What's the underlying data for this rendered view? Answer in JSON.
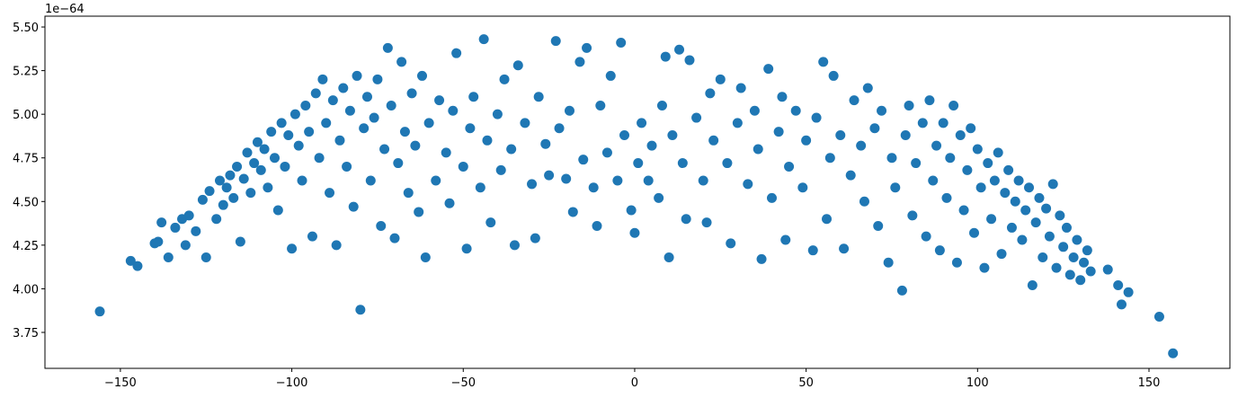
{
  "chart_data": {
    "type": "scatter",
    "color": "#1f77b4",
    "y_offset_label": "1e−64",
    "xlim": [
      -172,
      173.6
    ],
    "ylim": [
      3.544,
      5.562
    ],
    "xticks": [
      {
        "value": -150,
        "label": "−150"
      },
      {
        "value": -100,
        "label": "−100"
      },
      {
        "value": -50,
        "label": "−50"
      },
      0,
      50,
      100,
      150
    ],
    "yticks": [
      {
        "value": 3.75,
        "label": "3.75"
      },
      {
        "value": 4,
        "label": "4.00"
      },
      {
        "value": 4.25,
        "label": "4.25"
      },
      {
        "value": 4.5,
        "label": "4.50"
      },
      {
        "value": 4.75,
        "label": "4.75"
      },
      {
        "value": 5,
        "label": "5.00"
      },
      {
        "value": 5.25,
        "label": "5.25"
      },
      {
        "value": 5.5,
        "label": "5.50"
      }
    ],
    "x": [
      -156,
      -147,
      -145,
      -140,
      -139,
      -138,
      -136,
      -134,
      -132,
      -131,
      -130,
      -128,
      -126,
      -125,
      -124,
      -122,
      -121,
      -120,
      -119,
      -118,
      -117,
      -116,
      -115,
      -114,
      -113,
      -112,
      -111,
      -110,
      -109,
      -108,
      -107,
      -106,
      -105,
      -104,
      -103,
      -102,
      -101,
      -100,
      -99,
      -98,
      -97,
      -96,
      -95,
      -94,
      -93,
      -92,
      -91,
      -90,
      -89,
      -88,
      -87,
      -86,
      -85,
      -84,
      -83,
      -82,
      -81,
      -80,
      -79,
      -78,
      -77,
      -76,
      -75,
      -74,
      -73,
      -72,
      -71,
      -70,
      -69,
      -68,
      -67,
      -66,
      -65,
      -64,
      -63,
      -62,
      -61,
      -60,
      -58,
      -57,
      -55,
      -54,
      -53,
      -52,
      -50,
      -49,
      -48,
      -47,
      -45,
      -44,
      -43,
      -42,
      -40,
      -39,
      -38,
      -36,
      -35,
      -34,
      -32,
      -30,
      -29,
      -28,
      -26,
      -25,
      -23,
      -22,
      -20,
      -19,
      -18,
      -16,
      -15,
      -14,
      -12,
      -11,
      -10,
      -8,
      -7,
      -5,
      -4,
      -3,
      -1,
      0,
      1,
      2,
      4,
      5,
      7,
      8,
      9,
      10,
      11,
      13,
      14,
      15,
      16,
      18,
      20,
      21,
      22,
      23,
      25,
      27,
      28,
      30,
      31,
      33,
      35,
      36,
      37,
      39,
      40,
      42,
      43,
      44,
      45,
      47,
      49,
      50,
      52,
      53,
      55,
      56,
      57,
      58,
      60,
      61,
      63,
      64,
      66,
      67,
      68,
      70,
      71,
      72,
      74,
      75,
      76,
      78,
      79,
      80,
      81,
      82,
      84,
      85,
      86,
      87,
      88,
      89,
      90,
      91,
      92,
      93,
      94,
      95,
      96,
      97,
      98,
      99,
      100,
      101,
      102,
      103,
      104,
      105,
      106,
      107,
      108,
      109,
      110,
      111,
      112,
      113,
      114,
      115,
      116,
      117,
      118,
      119,
      120,
      121,
      122,
      123,
      124,
      125,
      126,
      127,
      128,
      129,
      130,
      131,
      132,
      133,
      138,
      141,
      142,
      144,
      153,
      157
    ],
    "values": [
      3.87,
      4.16,
      4.13,
      4.26,
      4.27,
      4.38,
      4.18,
      4.35,
      4.4,
      4.25,
      4.42,
      4.33,
      4.51,
      4.18,
      4.56,
      4.4,
      4.62,
      4.48,
      4.58,
      4.65,
      4.52,
      4.7,
      4.27,
      4.63,
      4.78,
      4.55,
      4.72,
      4.84,
      4.68,
      4.8,
      4.58,
      4.9,
      4.75,
      4.45,
      4.95,
      4.7,
      4.88,
      4.23,
      5.0,
      4.82,
      4.62,
      5.05,
      4.9,
      4.3,
      5.12,
      4.75,
      5.2,
      4.95,
      4.55,
      5.08,
      4.25,
      4.85,
      5.15,
      4.7,
      5.02,
      4.47,
      5.22,
      3.88,
      4.92,
      5.1,
      4.62,
      4.98,
      5.2,
      4.36,
      4.8,
      5.38,
      5.05,
      4.29,
      4.72,
      5.3,
      4.9,
      4.55,
      5.12,
      4.82,
      4.44,
      5.22,
      4.18,
      4.95,
      4.62,
      5.08,
      4.78,
      4.49,
      5.02,
      5.35,
      4.7,
      4.23,
      4.92,
      5.1,
      4.58,
      5.43,
      4.85,
      4.38,
      5.0,
      4.68,
      5.2,
      4.8,
      4.25,
      5.28,
      4.95,
      4.6,
      4.29,
      5.1,
      4.83,
      4.65,
      5.42,
      4.92,
      4.63,
      5.02,
      4.44,
      5.3,
      4.74,
      5.38,
      4.58,
      4.36,
      5.05,
      4.78,
      5.22,
      4.62,
      5.41,
      4.88,
      4.45,
      4.32,
      4.72,
      4.95,
      4.62,
      4.82,
      4.52,
      5.05,
      5.33,
      4.18,
      4.88,
      5.37,
      4.72,
      4.4,
      5.31,
      4.98,
      4.62,
      4.38,
      5.12,
      4.85,
      5.2,
      4.72,
      4.26,
      4.95,
      5.15,
      4.6,
      5.02,
      4.8,
      4.17,
      5.26,
      4.52,
      4.9,
      5.1,
      4.28,
      4.7,
      5.02,
      4.58,
      4.85,
      4.22,
      4.98,
      5.3,
      4.4,
      4.75,
      5.22,
      4.88,
      4.23,
      4.65,
      5.08,
      4.82,
      4.5,
      5.15,
      4.92,
      4.36,
      5.02,
      4.15,
      4.75,
      4.58,
      3.99,
      4.88,
      5.05,
      4.42,
      4.72,
      4.95,
      4.3,
      5.08,
      4.62,
      4.82,
      4.22,
      4.95,
      4.52,
      4.75,
      5.05,
      4.15,
      4.88,
      4.45,
      4.68,
      4.92,
      4.32,
      4.8,
      4.58,
      4.12,
      4.72,
      4.4,
      4.62,
      4.78,
      4.2,
      4.55,
      4.68,
      4.35,
      4.5,
      4.62,
      4.28,
      4.45,
      4.58,
      4.02,
      4.38,
      4.52,
      4.18,
      4.46,
      4.3,
      4.6,
      4.12,
      4.42,
      4.24,
      4.35,
      4.08,
      4.18,
      4.28,
      4.05,
      4.15,
      4.22,
      4.1,
      4.11,
      4.02,
      3.91,
      3.98,
      3.84,
      3.63
    ]
  }
}
